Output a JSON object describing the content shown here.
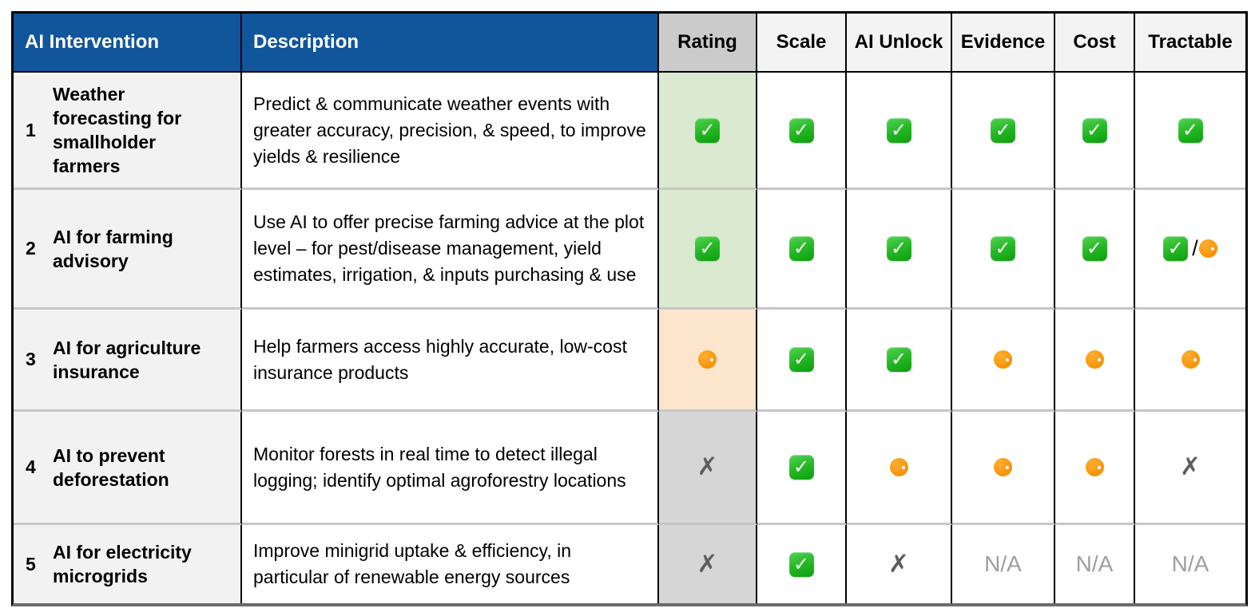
{
  "table": {
    "header": {
      "columns": [
        {
          "key": "intervention",
          "label": "AI Intervention",
          "theme": "blue"
        },
        {
          "key": "description",
          "label": "Description",
          "theme": "blue"
        },
        {
          "key": "rating",
          "label": "Rating",
          "theme": "gray"
        },
        {
          "key": "scale",
          "label": "Scale",
          "theme": "light"
        },
        {
          "key": "ai_unlock",
          "label": "AI Unlock",
          "theme": "light"
        },
        {
          "key": "evidence",
          "label": "Evidence",
          "theme": "light"
        },
        {
          "key": "cost",
          "label": "Cost",
          "theme": "light"
        },
        {
          "key": "tractable",
          "label": "Tractable",
          "theme": "light"
        }
      ]
    },
    "cell_order": [
      "rating",
      "scale",
      "ai_unlock",
      "evidence",
      "cost",
      "tractable"
    ],
    "rows": [
      {
        "num": "1",
        "name": "Weather forecasting for smallholder farmers",
        "description": "Predict & communicate weather events with greater accuracy, precision, & speed, to improve yields & resilience",
        "rating_bg": "green",
        "cells": {
          "rating": "check",
          "scale": "check",
          "ai_unlock": "check",
          "evidence": "check",
          "cost": "check",
          "tractable": "check"
        }
      },
      {
        "num": "2",
        "name": "AI for farming advisory",
        "description": "Use AI to offer precise farming advice at the plot level – for pest/disease management, yield estimates, irrigation, & inputs purchasing & use",
        "rating_bg": "green",
        "cells": {
          "rating": "check",
          "scale": "check",
          "ai_unlock": "check",
          "evidence": "check",
          "cost": "check",
          "tractable": "check-slash-orange"
        }
      },
      {
        "num": "3",
        "name": "AI for agriculture insurance",
        "description": "Help farmers access highly accurate, low-cost insurance products",
        "rating_bg": "orange",
        "cells": {
          "rating": "orange",
          "scale": "check",
          "ai_unlock": "check",
          "evidence": "orange",
          "cost": "orange",
          "tractable": "orange"
        }
      },
      {
        "num": "4",
        "name": "AI to prevent deforestation",
        "description": "Monitor forests in real time to detect illegal logging; identify optimal agroforestry locations",
        "rating_bg": "gray",
        "cells": {
          "rating": "x",
          "scale": "check",
          "ai_unlock": "orange",
          "evidence": "orange",
          "cost": "orange",
          "tractable": "x"
        }
      },
      {
        "num": "5",
        "name": "AI for electricity microgrids",
        "description": "Improve minigrid uptake & efficiency, in particular of renewable energy sources",
        "rating_bg": "gray",
        "cells": {
          "rating": "x",
          "scale": "check",
          "ai_unlock": "x",
          "evidence": "na",
          "cost": "na",
          "tractable": "na"
        }
      }
    ],
    "glyphs": {
      "check": "✓",
      "x": "✗",
      "na": "N/A",
      "slash": "/"
    },
    "colors": {
      "header_blue": "#11569B",
      "header_gray": "#CBCBCB",
      "header_light": "#F3F3F3",
      "first_col_bg": "#F2F2F2",
      "rating_green": "#DCE9D1",
      "rating_orange": "#FCE5CD",
      "rating_gray": "#D6D6D6",
      "check_green": "#25B825",
      "dot_orange": "#F78F00",
      "x_gray": "#5D5D5D",
      "na_gray": "#9E9E9E"
    }
  }
}
